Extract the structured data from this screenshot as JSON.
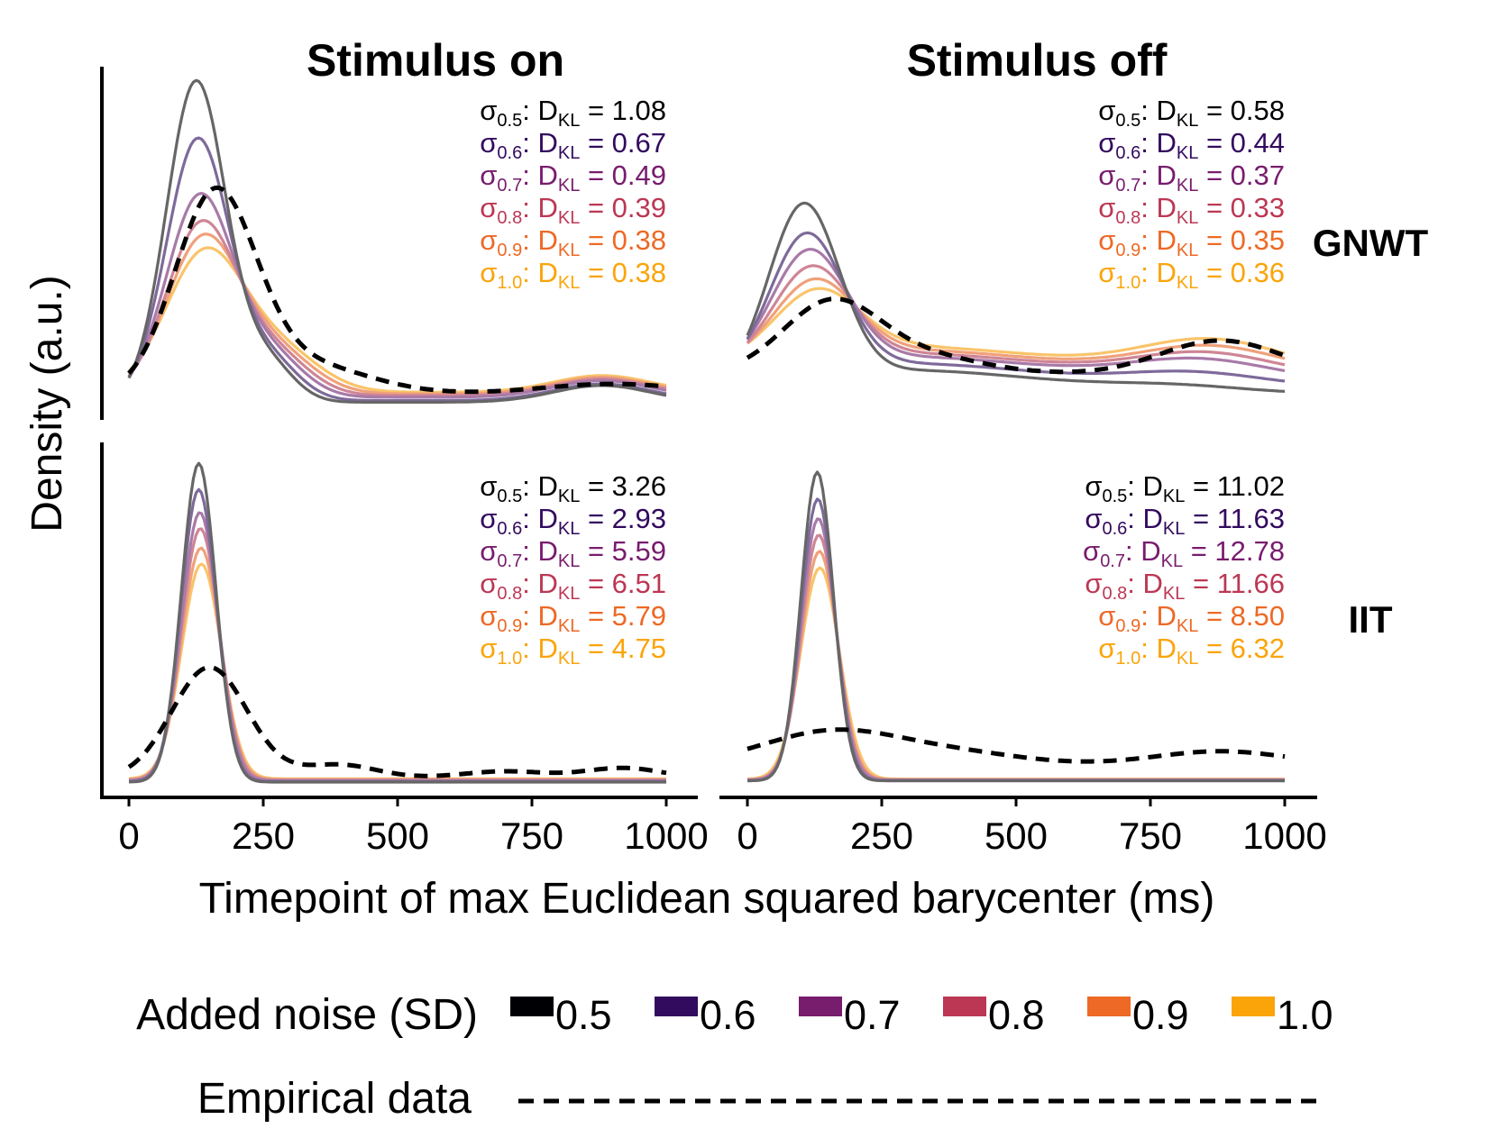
{
  "figure": {
    "col_titles": [
      "Stimulus on",
      "Stimulus off"
    ],
    "row_labels": [
      "GNWT",
      "IIT"
    ],
    "ylabel": "Density (a.u.)",
    "xlabel": "Timepoint of max Euclidean squared barycenter (ms)",
    "legend": {
      "noise_title": "Added noise (SD)",
      "empirical_label": "Empirical data"
    }
  },
  "chart_data": {
    "type": "line",
    "xlim": [
      0,
      1000
    ],
    "x_ticks": [
      "0",
      "250",
      "500",
      "750",
      "1000"
    ],
    "y_ticks_visible": false,
    "grid": false,
    "legend_placement": "bottom",
    "noise_levels": [
      {
        "label": "0.5",
        "sub": "0.5",
        "color": "#000004",
        "line_color": "#666666"
      },
      {
        "label": "0.6",
        "sub": "0.6",
        "color": "#320a5e",
        "line_color": "#7e6a9a"
      },
      {
        "label": "0.7",
        "sub": "0.7",
        "color": "#781c6d",
        "line_color": "#a87aa8"
      },
      {
        "label": "0.8",
        "sub": "0.8",
        "color": "#bc3754",
        "line_color": "#cf8595"
      },
      {
        "label": "0.9",
        "sub": "0.9",
        "color": "#ed6925",
        "line_color": "#f0a07a"
      },
      {
        "label": "1.0",
        "sub": "1.0",
        "color": "#fba40a",
        "line_color": "#f9c46a"
      }
    ],
    "empirical_style": "black dashed",
    "panels": [
      {
        "row": "GNWT",
        "col": "Stimulus on",
        "dkl": [
          "1.08",
          "0.67",
          "0.49",
          "0.39",
          "0.38",
          "0.38"
        ],
        "empirical": {
          "base": 0.04,
          "bumps": [
            [
              160,
              75,
              0.58
            ],
            [
              320,
              120,
              0.09
            ],
            [
              900,
              130,
              0.03
            ]
          ]
        },
        "models": [
          {
            "sd": "0.5",
            "base": 0.015,
            "bumps": [
              [
                125,
                55,
                0.96
              ],
              [
                255,
                50,
                0.12
              ],
              [
                880,
                90,
                0.05
              ]
            ]
          },
          {
            "sd": "0.6",
            "base": 0.02,
            "bumps": [
              [
                128,
                58,
                0.78
              ],
              [
                260,
                55,
                0.12
              ],
              [
                880,
                90,
                0.05
              ]
            ]
          },
          {
            "sd": "0.7",
            "base": 0.03,
            "bumps": [
              [
                132,
                62,
                0.6
              ],
              [
                265,
                60,
                0.12
              ],
              [
                880,
                90,
                0.05
              ]
            ]
          },
          {
            "sd": "0.8",
            "base": 0.035,
            "bumps": [
              [
                135,
                65,
                0.51
              ],
              [
                270,
                65,
                0.12
              ],
              [
                880,
                90,
                0.05
              ]
            ]
          },
          {
            "sd": "0.9",
            "base": 0.04,
            "bumps": [
              [
                138,
                68,
                0.46
              ],
              [
                275,
                70,
                0.12
              ],
              [
                880,
                90,
                0.05
              ]
            ]
          },
          {
            "sd": "1.0",
            "base": 0.045,
            "bumps": [
              [
                140,
                72,
                0.41
              ],
              [
                280,
                75,
                0.12
              ],
              [
                880,
                90,
                0.05
              ]
            ]
          }
        ]
      },
      {
        "row": "GNWT",
        "col": "Stimulus off",
        "dkl": [
          "0.58",
          "0.44",
          "0.37",
          "0.33",
          "0.35",
          "0.36"
        ],
        "empirical": {
          "base": 0.1,
          "bumps": [
            [
              155,
              90,
              0.21
            ],
            [
              330,
              110,
              0.05
            ],
            [
              880,
              110,
              0.1
            ]
          ]
        },
        "models": [
          {
            "sd": "0.5",
            "base": 0.04,
            "bumps": [
              [
                105,
                65,
                0.52
              ],
              [
                300,
                250,
                0.07
              ],
              [
                800,
                130,
                0.02
              ]
            ]
          },
          {
            "sd": "0.6",
            "base": 0.06,
            "bumps": [
              [
                110,
                68,
                0.41
              ],
              [
                300,
                250,
                0.07
              ],
              [
                830,
                130,
                0.04
              ]
            ]
          },
          {
            "sd": "0.7",
            "base": 0.08,
            "bumps": [
              [
                115,
                70,
                0.34
              ],
              [
                300,
                250,
                0.07
              ],
              [
                840,
                130,
                0.06
              ]
            ]
          },
          {
            "sd": "0.8",
            "base": 0.09,
            "bumps": [
              [
                120,
                72,
                0.28
              ],
              [
                300,
                250,
                0.07
              ],
              [
                850,
                130,
                0.07
              ]
            ]
          },
          {
            "sd": "0.9",
            "base": 0.1,
            "bumps": [
              [
                125,
                75,
                0.23
              ],
              [
                300,
                250,
                0.07
              ],
              [
                860,
                130,
                0.08
              ]
            ]
          },
          {
            "sd": "1.0",
            "base": 0.11,
            "bumps": [
              [
                130,
                78,
                0.19
              ],
              [
                300,
                250,
                0.07
              ],
              [
                860,
                130,
                0.09
              ]
            ]
          }
        ]
      },
      {
        "row": "IIT",
        "col": "Stimulus on",
        "dkl": [
          "3.26",
          "2.93",
          "5.59",
          "6.51",
          "5.79",
          "4.75"
        ],
        "empirical": {
          "base": 0.02,
          "bumps": [
            [
              150,
              70,
              0.33
            ],
            [
              390,
              70,
              0.04
            ],
            [
              700,
              80,
              0.02
            ],
            [
              920,
              70,
              0.03
            ]
          ]
        },
        "models": [
          {
            "sd": "0.5",
            "base": 0.008,
            "bumps": [
              [
                130,
                32,
                0.95
              ]
            ]
          },
          {
            "sd": "0.6",
            "base": 0.01,
            "bumps": [
              [
                130,
                33,
                0.87
              ]
            ]
          },
          {
            "sd": "0.7",
            "base": 0.012,
            "bumps": [
              [
                132,
                34,
                0.8
              ]
            ]
          },
          {
            "sd": "0.8",
            "base": 0.014,
            "bumps": [
              [
                133,
                35,
                0.75
              ]
            ]
          },
          {
            "sd": "0.9",
            "base": 0.016,
            "bumps": [
              [
                134,
                36,
                0.69
              ]
            ]
          },
          {
            "sd": "1.0",
            "base": 0.018,
            "bumps": [
              [
                135,
                37,
                0.64
              ]
            ]
          }
        ]
      },
      {
        "row": "IIT",
        "col": "Stimulus off",
        "dkl": [
          "11.02",
          "11.63",
          "12.78",
          "11.66",
          "8.50",
          "6.32"
        ],
        "empirical": {
          "base": 0.06,
          "bumps": [
            [
              160,
              130,
              0.1
            ],
            [
              400,
              120,
              0.03
            ],
            [
              880,
              120,
              0.04
            ]
          ]
        },
        "models": [
          {
            "sd": "0.5",
            "base": 0.012,
            "bumps": [
              [
                130,
                30,
                0.92
              ]
            ]
          },
          {
            "sd": "0.6",
            "base": 0.012,
            "bumps": [
              [
                131,
                31,
                0.84
              ]
            ]
          },
          {
            "sd": "0.7",
            "base": 0.014,
            "bumps": [
              [
                132,
                32,
                0.78
              ]
            ]
          },
          {
            "sd": "0.8",
            "base": 0.015,
            "bumps": [
              [
                133,
                33,
                0.73
              ]
            ]
          },
          {
            "sd": "0.9",
            "base": 0.016,
            "bumps": [
              [
                134,
                34,
                0.68
              ]
            ]
          },
          {
            "sd": "1.0",
            "base": 0.017,
            "bumps": [
              [
                135,
                36,
                0.63
              ]
            ]
          }
        ]
      }
    ]
  }
}
